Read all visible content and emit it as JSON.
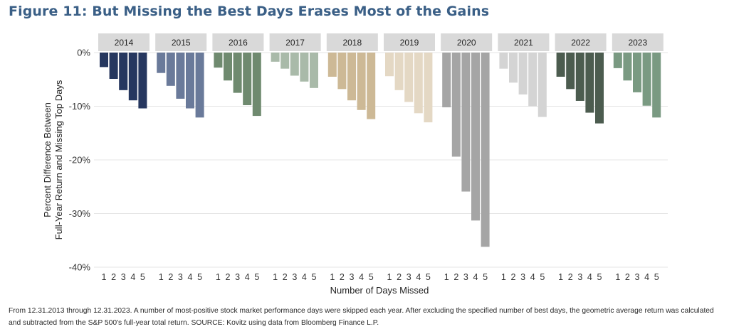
{
  "figure_title": "Figure 11: But Missing the Best Days Erases Most of the Gains",
  "footnote": "From 12.31.2013 through 12.31.2023. A number of most-positive stock market performance days were skipped each year. After excluding the specified number of best days, the geometric average return was calculated and subtracted from the S&P 500's full-year total return. SOURCE: Kovitz using data from Bloomberg Finance L.P.",
  "chart_data": {
    "type": "bar",
    "xlabel": "Number of Days Missed",
    "ylabel_lines": [
      "Percent Difference Between",
      "Full-Year Return and Missing Top Days"
    ],
    "ylim": [
      -40,
      0
    ],
    "yticks": [
      0,
      -10,
      -20,
      -30,
      -40
    ],
    "ytick_labels": [
      "0%",
      "-10%",
      "-20%",
      "-30%",
      "-40%"
    ],
    "grid": true,
    "categories": [
      "1",
      "2",
      "3",
      "4",
      "5"
    ],
    "panels": [
      {
        "year": "2014",
        "color": "#26375f",
        "values": [
          -2.7,
          -4.9,
          -7.0,
          -8.9,
          -10.4
        ]
      },
      {
        "year": "2015",
        "color": "#6a7a9a",
        "values": [
          -3.8,
          -6.2,
          -8.6,
          -10.4,
          -12.1
        ]
      },
      {
        "year": "2016",
        "color": "#6f8a6f",
        "values": [
          -2.8,
          -5.2,
          -7.5,
          -9.8,
          -11.8
        ]
      },
      {
        "year": "2017",
        "color": "#a9baa9",
        "values": [
          -1.7,
          -3.0,
          -4.3,
          -5.4,
          -6.6
        ]
      },
      {
        "year": "2018",
        "color": "#cdb996",
        "values": [
          -4.5,
          -6.8,
          -8.9,
          -10.7,
          -12.4
        ]
      },
      {
        "year": "2019",
        "color": "#e4d8c4",
        "values": [
          -4.4,
          -7.0,
          -9.2,
          -11.3,
          -13.0
        ]
      },
      {
        "year": "2020",
        "color": "#a5a5a5",
        "values": [
          -10.2,
          -19.4,
          -25.9,
          -31.3,
          -36.2
        ]
      },
      {
        "year": "2021",
        "color": "#d4d4d4",
        "values": [
          -3.0,
          -5.6,
          -7.8,
          -10.0,
          -12.0
        ]
      },
      {
        "year": "2022",
        "color": "#4c5c4f",
        "values": [
          -4.5,
          -6.8,
          -9.0,
          -11.2,
          -13.2
        ]
      },
      {
        "year": "2023",
        "color": "#7a9a82",
        "values": [
          -2.9,
          -5.2,
          -7.4,
          -9.9,
          -12.1
        ]
      }
    ]
  }
}
